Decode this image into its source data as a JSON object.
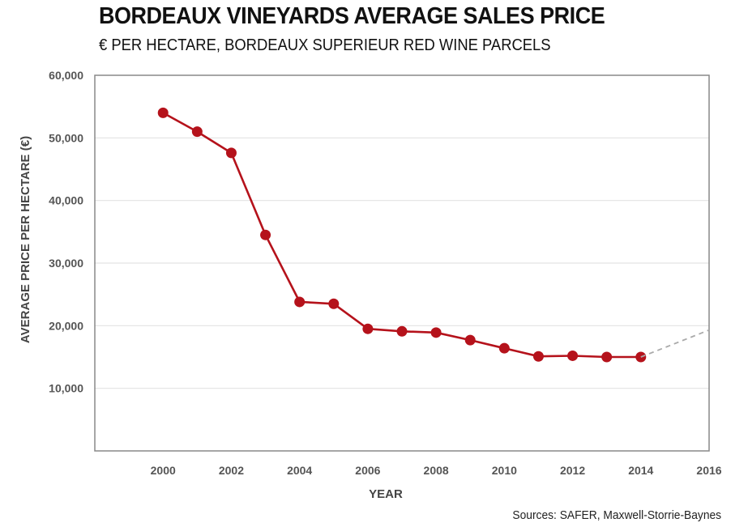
{
  "header": {
    "title": "BORDEAUX VINEYARDS AVERAGE SALES PRICE",
    "subtitle": "€ PER HECTARE, BORDEAUX SUPERIEUR RED WINE PARCELS"
  },
  "footer": {
    "source": "Sources: SAFER, Maxwell-Storrie-Baynes"
  },
  "chart_data": {
    "type": "line",
    "title": "BORDEAUX VINEYARDS AVERAGE SALES PRICE",
    "subtitle": "€ PER HECTARE, BORDEAUX SUPERIEUR RED WINE PARCELS",
    "xlabel": "YEAR",
    "ylabel": "AVERAGE PRICE PER HECTARE (€)",
    "xlim": [
      1998,
      2016
    ],
    "ylim": [
      0,
      60000
    ],
    "x_ticks": [
      2000,
      2002,
      2004,
      2006,
      2008,
      2010,
      2012,
      2014,
      2016
    ],
    "x_tick_labels": [
      "2000",
      "2002",
      "2004",
      "2006",
      "2008",
      "2010",
      "2012",
      "2014",
      "2016"
    ],
    "y_ticks": [
      10000,
      20000,
      30000,
      40000,
      50000,
      60000
    ],
    "y_tick_labels": [
      "10,000",
      "20,000",
      "30,000",
      "40,000",
      "50,000",
      "60,000"
    ],
    "grid": "horizontal",
    "series": [
      {
        "color": "#b5121b",
        "style": "solid-with-markers",
        "x": [
          2000,
          2001,
          2002,
          2003,
          2004,
          2005,
          2006,
          2007,
          2008,
          2009,
          2010,
          2011,
          2012,
          2013,
          2014
        ],
        "values": [
          54000,
          51000,
          47600,
          34500,
          23800,
          23500,
          19500,
          19100,
          18900,
          17700,
          16400,
          15100,
          15200,
          15000,
          15000
        ]
      },
      {
        "color": "#aaaaaa",
        "style": "dashed",
        "x": [
          2014,
          2016
        ],
        "values": [
          15000,
          19300
        ]
      }
    ]
  }
}
